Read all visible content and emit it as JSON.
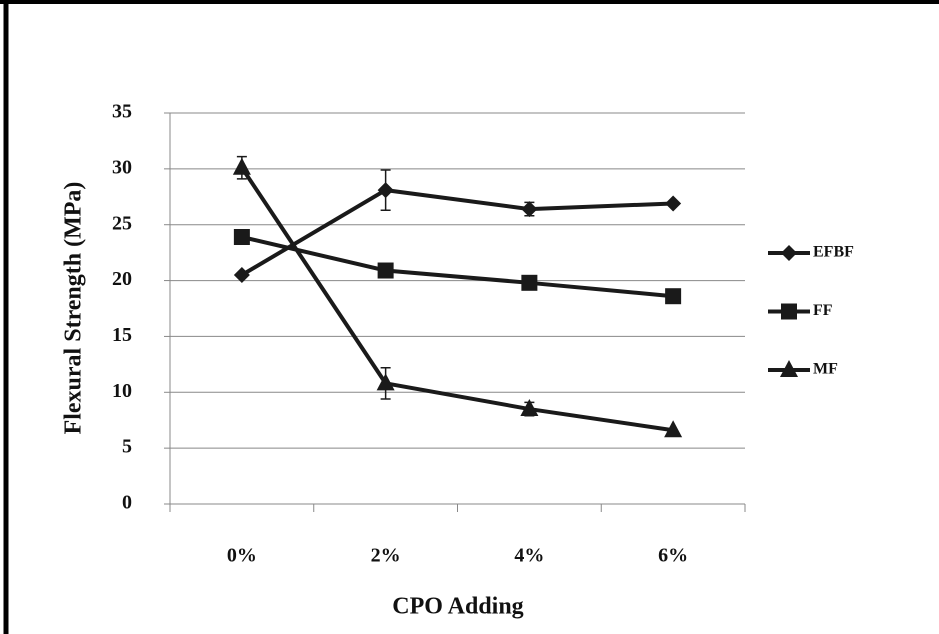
{
  "chart_data": {
    "type": "line",
    "xlabel": "CPO Adding",
    "ylabel": "Flexural Strength (MPa)",
    "categories": [
      "0%",
      "2%",
      "4%",
      "6%"
    ],
    "series": [
      {
        "name": "EFBF",
        "color": "#1a1a1a",
        "marker": "diamond",
        "values": [
          20.5,
          28.1,
          26.4,
          26.9
        ],
        "errors": [
          null,
          1.8,
          0.6,
          null
        ]
      },
      {
        "name": "FF",
        "color": "#1a1a1a",
        "marker": "square",
        "values": [
          23.9,
          20.9,
          19.8,
          18.6
        ],
        "errors": [
          null,
          null,
          null,
          null
        ]
      },
      {
        "name": "MF",
        "color": "#1a1a1a",
        "marker": "triangle",
        "values": [
          30.1,
          10.8,
          8.5,
          6.6
        ],
        "errors": [
          1.0,
          1.4,
          0.6,
          null
        ]
      }
    ],
    "ylim": [
      0,
      35
    ],
    "yticks": [
      0,
      5,
      10,
      15,
      20,
      25,
      30,
      35
    ],
    "grid": true,
    "legend": "right"
  }
}
